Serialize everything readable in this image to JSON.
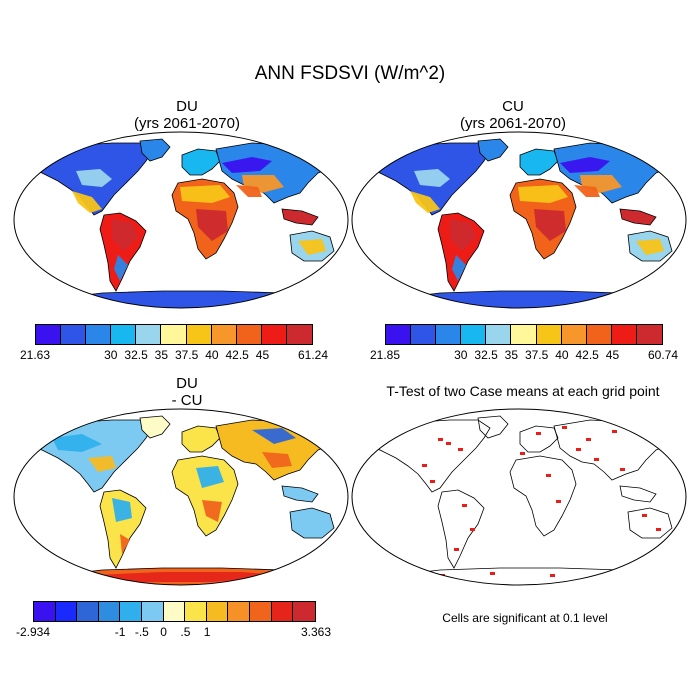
{
  "title": "ANN FSDSVI (W/m^2)",
  "panels": {
    "du": {
      "name": "DU",
      "subtitle": "(yrs 2061-2070)"
    },
    "cu": {
      "name": "CU",
      "subtitle": "(yrs 2061-2070)"
    },
    "diff": {
      "name": "DU",
      "subtitle": "- CU"
    },
    "ttest": {
      "title": "T-Test of two Case means at each grid point",
      "note": "Cells are significant at 0.1 level"
    }
  },
  "colorbars": {
    "du": {
      "colors": [
        "#3a12f0",
        "#2e55e6",
        "#2a86e8",
        "#19b7ef",
        "#9ad5ee",
        "#fff79a",
        "#f7c418",
        "#f7962a",
        "#f1631a",
        "#ee1c16",
        "#cc2a2e"
      ],
      "labels": [
        "21.63",
        "30",
        "32.5",
        "35",
        "37.5",
        "40",
        "42.5",
        "45",
        "61.24"
      ]
    },
    "cu": {
      "colors": [
        "#3a12f0",
        "#2e55e6",
        "#2a86e8",
        "#19b7ef",
        "#9ad5ee",
        "#fff79a",
        "#f7c418",
        "#f7962a",
        "#f1631a",
        "#ee1c16",
        "#cc2a2e"
      ],
      "labels": [
        "21.85",
        "30",
        "32.5",
        "35",
        "37.5",
        "40",
        "42.5",
        "45",
        "60.74"
      ]
    },
    "diff": {
      "colors": [
        "#3a12f0",
        "#1a2aff",
        "#2e66d8",
        "#2f8de0",
        "#2fb0ec",
        "#7ccaf1",
        "#fdfbc6",
        "#fbe34a",
        "#f7bb22",
        "#f59127",
        "#f0641c",
        "#e5251a",
        "#cc2a2e"
      ],
      "labels": [
        "-2.934",
        "-1",
        "-.5",
        "0",
        ".5",
        "1",
        "3.363"
      ]
    }
  }
}
